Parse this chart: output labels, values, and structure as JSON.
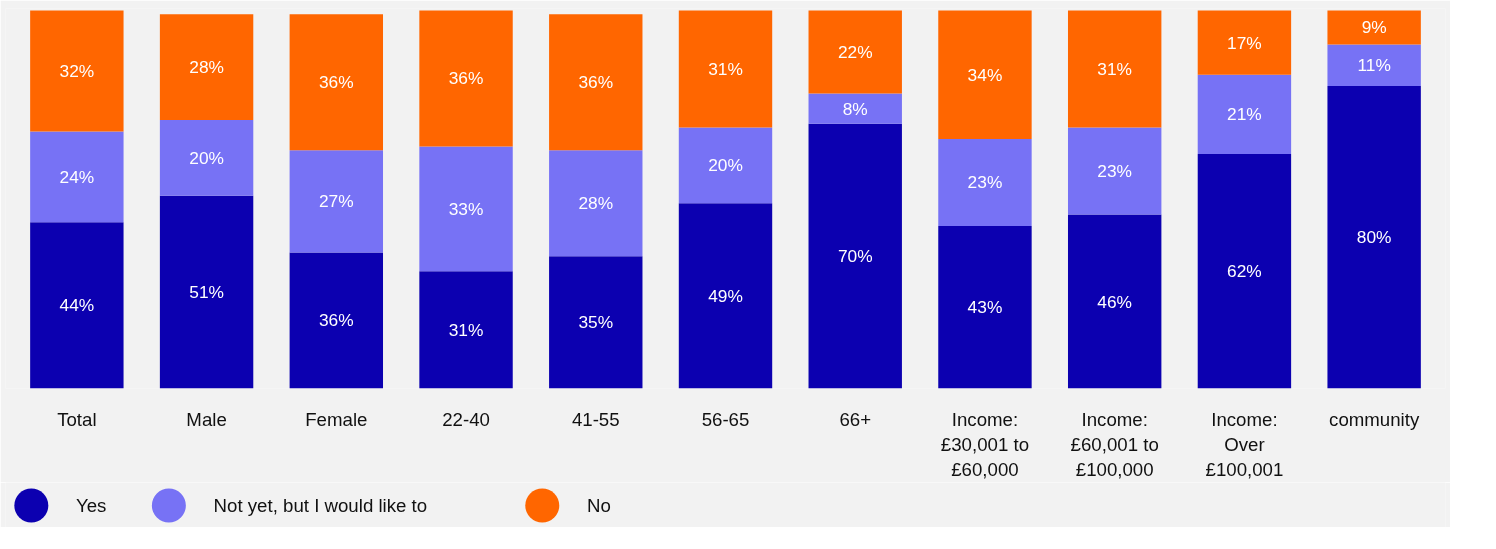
{
  "chart_data": {
    "type": "bar",
    "stacked": true,
    "legend": "bottom",
    "categories": [
      "Total",
      "Male",
      "Female",
      "22-40",
      "41-55",
      "56-65",
      "66+",
      "Income: £30,001 to £60,000",
      "Income: £60,001 to £100,000",
      "Income: Over £100,001",
      "community"
    ],
    "series": [
      {
        "name": "Yes",
        "color": "#0c00b0",
        "values": [
          44,
          51,
          36,
          31,
          35,
          49,
          70,
          43,
          46,
          62,
          80
        ],
        "value_labels": [
          "44%",
          "51%",
          "36%",
          "31%",
          "35%",
          "49%",
          "70%",
          "43%",
          "46%",
          "62%",
          "80%"
        ]
      },
      {
        "name": "Not yet, but I would like to",
        "color": "#7772f5",
        "values": [
          24,
          20,
          27,
          33,
          28,
          20,
          8,
          23,
          23,
          21,
          11
        ],
        "value_labels": [
          "24%",
          "20%",
          "27%",
          "33%",
          "28%",
          "20%",
          "8%",
          "23%",
          "23%",
          "21%",
          "11%"
        ]
      },
      {
        "name": "No",
        "color": "#ff6600",
        "values": [
          32,
          28,
          36,
          36,
          36,
          31,
          22,
          34,
          31,
          17,
          9
        ],
        "value_labels": [
          "32%",
          "28%",
          "36%",
          "36%",
          "36%",
          "31%",
          "22%",
          "34%",
          "31%",
          "17%",
          "9%"
        ]
      }
    ]
  }
}
